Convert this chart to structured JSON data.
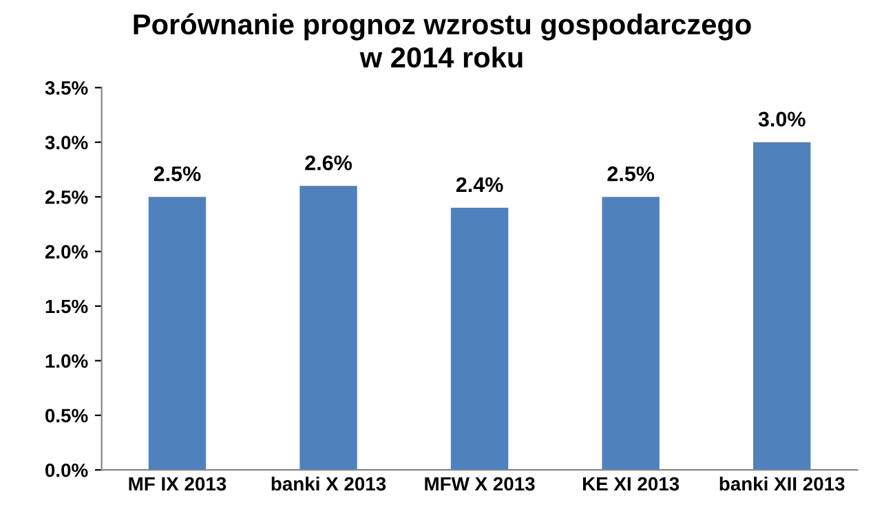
{
  "chart_data": {
    "type": "bar",
    "title": "Porównanie prognoz wzrostu gospodarczego\nw 2014 roku",
    "categories": [
      "MF IX 2013",
      "banki X 2013",
      "MFW X 2013",
      "KE XI 2013",
      "banki XII 2013"
    ],
    "values": [
      2.5,
      2.6,
      2.4,
      2.5,
      3.0
    ],
    "value_labels": [
      "2.5%",
      "2.6%",
      "2.4%",
      "2.5%",
      "3.0%"
    ],
    "color": "#4f81bd",
    "ylim": [
      0,
      3.5
    ],
    "yticks": [
      {
        "value": 0,
        "label": "0.0%"
      },
      {
        "value": 0.5,
        "label": "0.5%"
      },
      {
        "value": 1,
        "label": "1.0%"
      },
      {
        "value": 1.5,
        "label": "1.5%"
      },
      {
        "value": 2,
        "label": "2.0%"
      },
      {
        "value": 2.5,
        "label": "2.5%"
      },
      {
        "value": 3,
        "label": "3.0%"
      },
      {
        "value": 3.5,
        "label": "3.5%"
      }
    ],
    "grid": false,
    "legend": false
  }
}
